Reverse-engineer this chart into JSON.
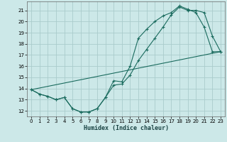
{
  "xlabel": "Humidex (Indice chaleur)",
  "bg_color": "#cce8e8",
  "grid_color": "#aacccc",
  "line_color": "#1a6b5e",
  "xlim": [
    -0.5,
    23.5
  ],
  "ylim": [
    11.5,
    21.8
  ],
  "yticks": [
    12,
    13,
    14,
    15,
    16,
    17,
    18,
    19,
    20,
    21
  ],
  "xticks": [
    0,
    1,
    2,
    3,
    4,
    5,
    6,
    7,
    8,
    9,
    10,
    11,
    12,
    13,
    14,
    15,
    16,
    17,
    18,
    19,
    20,
    21,
    22,
    23
  ],
  "series1_x": [
    0,
    1,
    2,
    3,
    4,
    5,
    6,
    7,
    8,
    9,
    10,
    11,
    12,
    13,
    14,
    15,
    16,
    17,
    18,
    19,
    20,
    21,
    22,
    23
  ],
  "series1_y": [
    13.9,
    13.5,
    13.3,
    13.0,
    13.2,
    12.2,
    11.9,
    11.9,
    12.2,
    13.2,
    14.7,
    14.6,
    16.0,
    18.5,
    19.3,
    20.0,
    20.5,
    20.8,
    21.4,
    21.1,
    20.8,
    19.5,
    17.3,
    17.3
  ],
  "series2_x": [
    0,
    1,
    2,
    3,
    4,
    5,
    6,
    7,
    8,
    9,
    10,
    11,
    12,
    13,
    14,
    15,
    16,
    17,
    18,
    19,
    20,
    21,
    22,
    23
  ],
  "series2_y": [
    13.9,
    13.5,
    13.3,
    13.0,
    13.2,
    12.2,
    11.9,
    11.9,
    12.2,
    13.2,
    14.3,
    14.4,
    15.2,
    16.5,
    17.5,
    18.5,
    19.5,
    20.6,
    21.3,
    21.0,
    21.0,
    20.8,
    18.7,
    17.3
  ],
  "series3_x": [
    0,
    23
  ],
  "series3_y": [
    13.9,
    17.3
  ]
}
